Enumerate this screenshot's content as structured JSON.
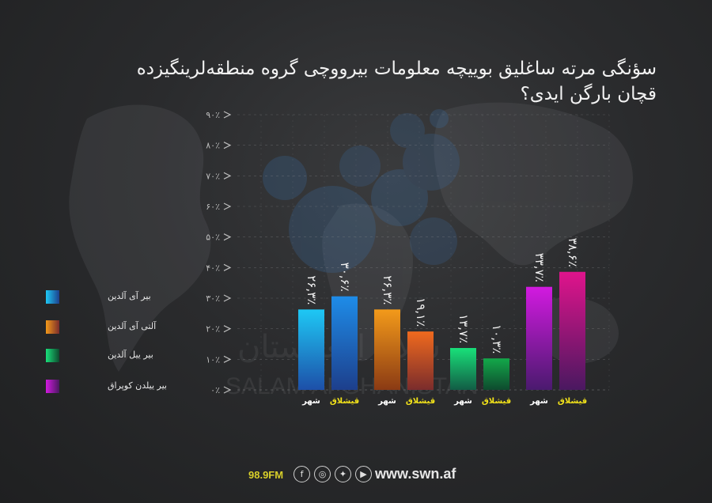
{
  "title_line1": "سؤنگی مرته ساغلیق بوییچه معلومات بیرووچی گروه منطقه‌لرینگیزده",
  "title_line2": "قچان بارگن ایدی؟",
  "footer": {
    "frequency": "98.9FM",
    "website": "www.swn.af",
    "icons": [
      "facebook-icon",
      "instagram-icon",
      "twitter-icon",
      "youtube-icon"
    ]
  },
  "watermark": [
    "سلام افغانستان",
    "SALAM AFGHANISTAN"
  ],
  "chart_data": {
    "type": "bar",
    "ylim": [
      0,
      90
    ],
    "y_ticks": [
      "۰٪",
      "۱۰٪",
      "۲۰٪",
      "۳۰٪",
      "۴۰٪",
      "۵۰٪",
      "۶۰٪",
      "۷۰٪",
      "۸۰٪",
      "۹۰٪"
    ],
    "y_tick_values": [
      0,
      10,
      20,
      30,
      40,
      50,
      60,
      70,
      80,
      90
    ],
    "grid": true,
    "legend_position": "left",
    "groups": [
      {
        "name": "بیر آی آلدین",
        "color": "#1e7fe0",
        "bars": [
          {
            "category": "شهر",
            "value": 26.3,
            "label": "۲۶,۳٪",
            "color_top": "#1ec8f5",
            "color_bottom": "#1d4fa8"
          },
          {
            "category": "قیشلاق",
            "value": 30.6,
            "label": "۳۰,۶٪",
            "color_top": "#1e8ce8",
            "color_bottom": "#1d3f8c"
          }
        ]
      },
      {
        "name": "آلتی آی آلدین",
        "color": "#f07a1a",
        "bars": [
          {
            "category": "شهر",
            "value": 26.3,
            "label": "۲۶,۳٪",
            "color_top": "#f39a1a",
            "color_bottom": "#8a3a14"
          },
          {
            "category": "قیشلاق",
            "value": 19.1,
            "label": "۱۹,۱٪",
            "color_top": "#f06a1e",
            "color_bottom": "#7a2c2c"
          }
        ]
      },
      {
        "name": "بیر ییل آلدین",
        "color": "#18d46a",
        "bars": [
          {
            "category": "شهر",
            "value": 13.7,
            "label": "۱۳,۷٪",
            "color_top": "#19e07a",
            "color_bottom": "#125c45"
          },
          {
            "category": "قیشلاق",
            "value": 10.3,
            "label": "۱۰,۳٪",
            "color_top": "#13a84a",
            "color_bottom": "#0e4a2e"
          }
        ]
      },
      {
        "name": "بیر ییلدن کوپراق",
        "color": "#c21ad6",
        "bars": [
          {
            "category": "شهر",
            "value": 33.7,
            "label": "۳۳,۷٪",
            "color_top": "#d21ae0",
            "color_bottom": "#4a1a6e"
          },
          {
            "category": "قیشلاق",
            "value": 38.6,
            "label": "۳۸,۶٪",
            "color_top": "#e0148c",
            "color_bottom": "#4a1860"
          }
        ]
      }
    ],
    "category_label_colors": {
      "شهر": "#ffffff",
      "قیشلاق": "#f2e21a"
    }
  }
}
